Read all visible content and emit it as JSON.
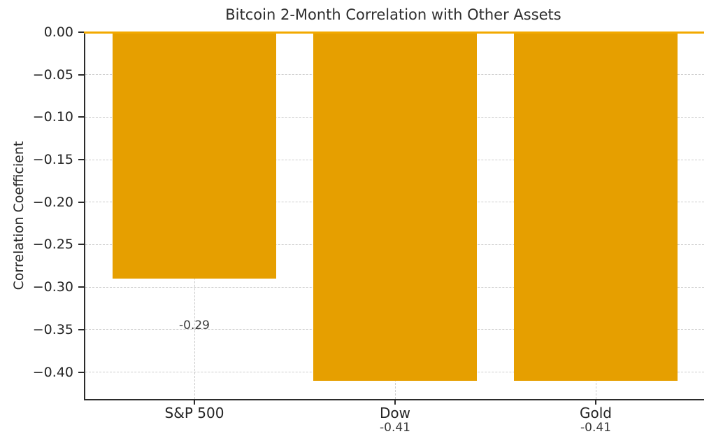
{
  "chart_data": {
    "type": "bar",
    "title": "Bitcoin 2-Month Correlation with Other Assets",
    "xlabel": "",
    "ylabel": "Correlation Coefficient",
    "categories": [
      "S&P 500",
      "Dow",
      "Gold"
    ],
    "values": [
      -0.29,
      -0.41,
      -0.41
    ],
    "bar_value_labels": [
      "-0.29",
      "-0.41",
      "-0.41"
    ],
    "yticks": [
      0.0,
      -0.05,
      -0.1,
      -0.15,
      -0.2,
      -0.25,
      -0.3,
      -0.35,
      -0.4
    ],
    "ytick_labels": [
      "0.00",
      "−0.05",
      "−0.10",
      "−0.15",
      "−0.20",
      "−0.25",
      "−0.30",
      "−0.35",
      "−0.40"
    ],
    "ylim": [
      -0.4317,
      0
    ],
    "grid": "dashed horizontal and vertical",
    "legend_position": "none",
    "bar_color": "#E69F00",
    "zero_line_color": "#F2A900",
    "axis_color": "#2b2b2b",
    "grid_color": "#cccccc"
  }
}
